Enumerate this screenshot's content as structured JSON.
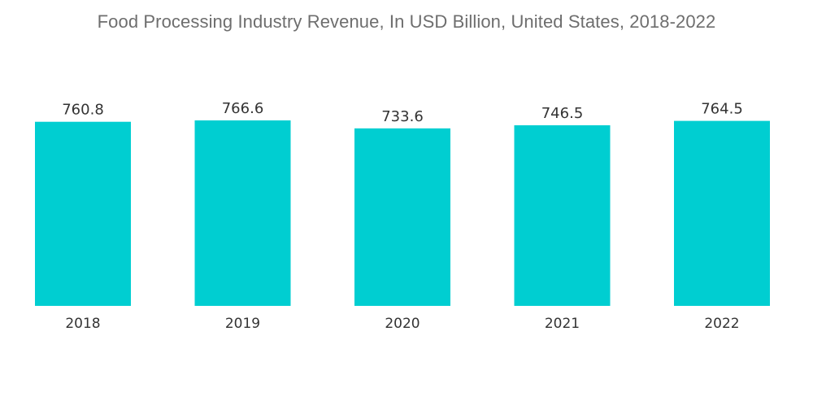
{
  "chart_data": {
    "type": "bar",
    "title": "Food Processing Industry Revenue, In USD Billion, United States, 2018-2022",
    "categories": [
      "2018",
      "2019",
      "2020",
      "2021",
      "2022"
    ],
    "values": [
      760.8,
      766.6,
      733.6,
      746.5,
      764.5
    ],
    "value_labels": [
      "760.8",
      "766.6",
      "733.6",
      "746.5",
      "764.5"
    ],
    "xlabel": "",
    "ylabel": "",
    "ylim": [
      0,
      766.6
    ],
    "grid": false,
    "legend": "none",
    "bar_color": "#00CED1"
  }
}
